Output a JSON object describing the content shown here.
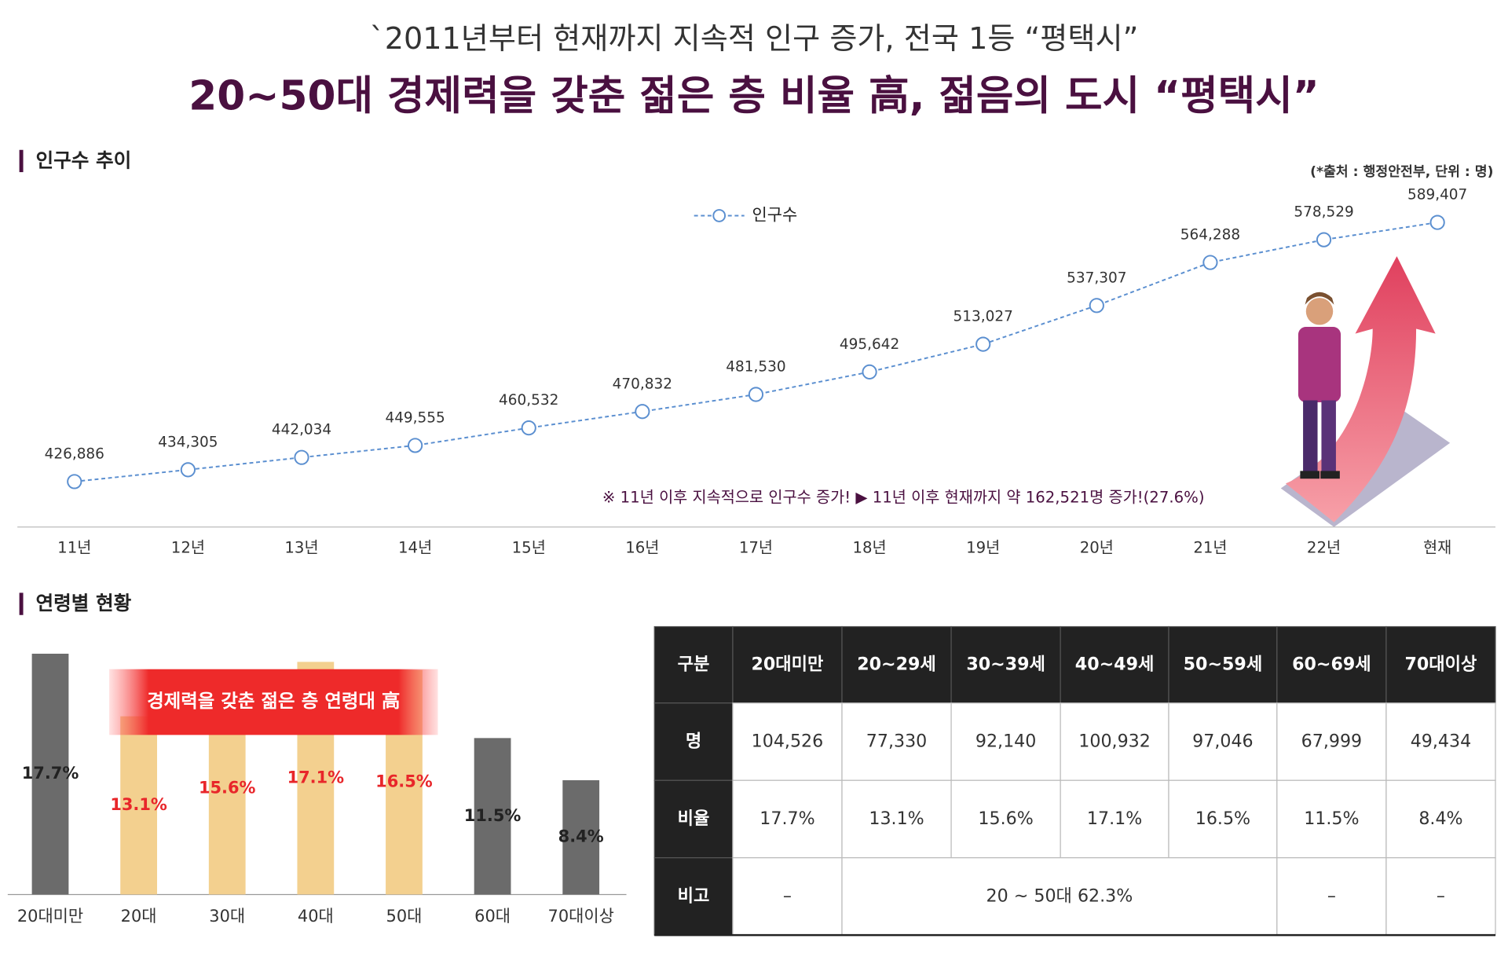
{
  "header": {
    "subtitle": "`2011년부터 현재까지 지속적 인구 증가, 전국 1등 “평택시”",
    "title": "20~50대 경제력을 갖춘 젊은 층 비율 高, 젊음의 도시 “평택시”"
  },
  "chart_data": [
    {
      "type": "line",
      "title": "인구수 추이",
      "source": "(*출처 : 행정안전부, 단위 : 명)",
      "annotation": "※ 11년 이후 지속적으로 인구수 증가! ▶ 11년 이후 현재까지 약 162,521명 증가!(27.6%)",
      "categories": [
        "11년",
        "12년",
        "13년",
        "14년",
        "15년",
        "16년",
        "17년",
        "18년",
        "19년",
        "20년",
        "21년",
        "22년",
        "현재"
      ],
      "series": [
        {
          "name": "인구수",
          "color": "#5b8fd0",
          "values": [
            426886,
            434305,
            442034,
            449555,
            460532,
            470832,
            481530,
            495642,
            513027,
            537307,
            564288,
            578529,
            589407
          ],
          "value_labels": [
            "426,886",
            "434,305",
            "442,034",
            "449,555",
            "460,532",
            "470,832",
            "481,530",
            "495,642",
            "513,027",
            "537,307",
            "564,288",
            "578,529",
            "589,407"
          ]
        }
      ]
    },
    {
      "type": "bar",
      "title": "연령별 현황",
      "annotation": "경제력을 갖춘 젊은 층 연령대 高",
      "categories": [
        "20대미만",
        "20대",
        "30대",
        "40대",
        "50대",
        "60대",
        "70대이상"
      ],
      "values": [
        17.7,
        13.1,
        15.6,
        17.1,
        16.5,
        11.5,
        8.4
      ],
      "value_labels": [
        "17.7%",
        "13.1%",
        "15.6%",
        "17.1%",
        "16.5%",
        "11.5%",
        "8.4%"
      ],
      "colors": [
        "#6b6b6b",
        "#f3d08f",
        "#f3d08f",
        "#f3d08f",
        "#f3d08f",
        "#6b6b6b",
        "#6b6b6b"
      ],
      "value_label_colors": [
        "#222222",
        "#e8262a",
        "#e8262a",
        "#e8262a",
        "#e8262a",
        "#222222",
        "#222222"
      ]
    }
  ],
  "table": {
    "header": [
      "구분",
      "20대미만",
      "20~29세",
      "30~39세",
      "40~49세",
      "50~59세",
      "60~69세",
      "70대이상"
    ],
    "rows": [
      [
        "명",
        "104,526",
        "77,330",
        "92,140",
        "100,932",
        "97,046",
        "67,999",
        "49,434"
      ],
      [
        "비율",
        "17.7%",
        "13.1%",
        "15.6%",
        "17.1%",
        "16.5%",
        "11.5%",
        "8.4%"
      ],
      [
        "비고",
        "–",
        "20 ~ 50대 62.3%",
        "–",
        "–"
      ]
    ]
  }
}
